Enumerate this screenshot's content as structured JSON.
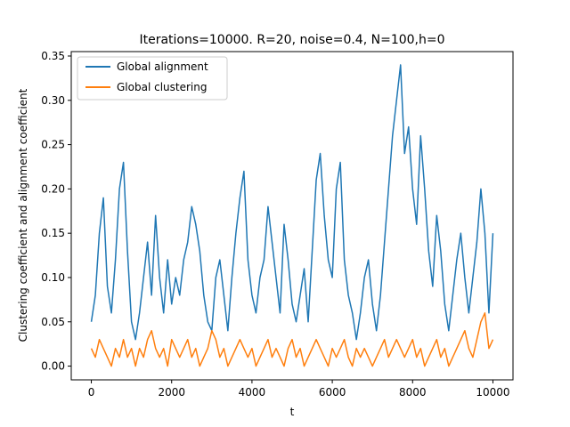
{
  "chart_data": {
    "type": "line",
    "title": "Iterations=10000. R=20, noise=0.4, N=100,h=0",
    "xlabel": "t",
    "ylabel": "Clustering coefficient and alignment coefficient",
    "xlim": [
      -500,
      10500
    ],
    "ylim": [
      -0.0155,
      0.355
    ],
    "xticks": [
      0,
      2000,
      4000,
      6000,
      8000,
      10000
    ],
    "xtick_labels": [
      "0",
      "2000",
      "4000",
      "6000",
      "8000",
      "10000"
    ],
    "yticks": [
      0.0,
      0.05,
      0.1,
      0.15,
      0.2,
      0.25,
      0.3,
      0.35
    ],
    "ytick_labels": [
      "0.00",
      "0.05",
      "0.10",
      "0.15",
      "0.20",
      "0.25",
      "0.30",
      "0.35"
    ],
    "grid": false,
    "legend_position": "top-left",
    "series": [
      {
        "name": "Global alignment",
        "color": "#1f77b4",
        "x": [
          0,
          100,
          200,
          300,
          400,
          500,
          600,
          700,
          800,
          900,
          1000,
          1100,
          1200,
          1300,
          1400,
          1500,
          1600,
          1700,
          1800,
          1900,
          2000,
          2100,
          2200,
          2300,
          2400,
          2500,
          2600,
          2700,
          2800,
          2900,
          3000,
          3100,
          3200,
          3300,
          3400,
          3500,
          3600,
          3700,
          3800,
          3900,
          4000,
          4100,
          4200,
          4300,
          4400,
          4500,
          4600,
          4700,
          4800,
          4900,
          5000,
          5100,
          5200,
          5300,
          5400,
          5500,
          5600,
          5700,
          5800,
          5900,
          6000,
          6100,
          6200,
          6300,
          6400,
          6500,
          6600,
          6700,
          6800,
          6900,
          7000,
          7100,
          7200,
          7300,
          7400,
          7500,
          7600,
          7700,
          7800,
          7900,
          8000,
          8100,
          8200,
          8300,
          8400,
          8500,
          8600,
          8700,
          8800,
          8900,
          9000,
          9100,
          9200,
          9300,
          9400,
          9500,
          9600,
          9700,
          9800,
          9900,
          10000
        ],
        "values": [
          0.05,
          0.08,
          0.15,
          0.19,
          0.09,
          0.06,
          0.12,
          0.2,
          0.23,
          0.13,
          0.05,
          0.03,
          0.06,
          0.1,
          0.14,
          0.08,
          0.17,
          0.1,
          0.06,
          0.12,
          0.07,
          0.1,
          0.08,
          0.12,
          0.14,
          0.18,
          0.16,
          0.13,
          0.08,
          0.05,
          0.04,
          0.1,
          0.12,
          0.08,
          0.04,
          0.1,
          0.15,
          0.19,
          0.22,
          0.12,
          0.08,
          0.06,
          0.1,
          0.12,
          0.18,
          0.14,
          0.1,
          0.06,
          0.16,
          0.12,
          0.07,
          0.05,
          0.08,
          0.11,
          0.05,
          0.13,
          0.21,
          0.24,
          0.17,
          0.12,
          0.1,
          0.2,
          0.23,
          0.12,
          0.08,
          0.06,
          0.03,
          0.06,
          0.1,
          0.12,
          0.07,
          0.04,
          0.08,
          0.14,
          0.2,
          0.26,
          0.3,
          0.34,
          0.24,
          0.27,
          0.2,
          0.16,
          0.26,
          0.2,
          0.13,
          0.09,
          0.17,
          0.13,
          0.07,
          0.04,
          0.08,
          0.12,
          0.15,
          0.1,
          0.06,
          0.1,
          0.14,
          0.2,
          0.15,
          0.06,
          0.15
        ]
      },
      {
        "name": "Global clustering",
        "color": "#ff7f0e",
        "x": [
          0,
          100,
          200,
          300,
          400,
          500,
          600,
          700,
          800,
          900,
          1000,
          1100,
          1200,
          1300,
          1400,
          1500,
          1600,
          1700,
          1800,
          1900,
          2000,
          2100,
          2200,
          2300,
          2400,
          2500,
          2600,
          2700,
          2800,
          2900,
          3000,
          3100,
          3200,
          3300,
          3400,
          3500,
          3600,
          3700,
          3800,
          3900,
          4000,
          4100,
          4200,
          4300,
          4400,
          4500,
          4600,
          4700,
          4800,
          4900,
          5000,
          5100,
          5200,
          5300,
          5400,
          5500,
          5600,
          5700,
          5800,
          5900,
          6000,
          6100,
          6200,
          6300,
          6400,
          6500,
          6600,
          6700,
          6800,
          6900,
          7000,
          7100,
          7200,
          7300,
          7400,
          7500,
          7600,
          7700,
          7800,
          7900,
          8000,
          8100,
          8200,
          8300,
          8400,
          8500,
          8600,
          8700,
          8800,
          8900,
          9000,
          9100,
          9200,
          9300,
          9400,
          9500,
          9600,
          9700,
          9800,
          9900,
          10000
        ],
        "values": [
          0.02,
          0.01,
          0.03,
          0.02,
          0.01,
          0.0,
          0.02,
          0.01,
          0.03,
          0.01,
          0.02,
          0.0,
          0.02,
          0.01,
          0.03,
          0.04,
          0.02,
          0.01,
          0.02,
          0.0,
          0.03,
          0.02,
          0.01,
          0.02,
          0.03,
          0.01,
          0.02,
          0.0,
          0.01,
          0.02,
          0.04,
          0.03,
          0.01,
          0.02,
          0.0,
          0.01,
          0.02,
          0.03,
          0.02,
          0.01,
          0.02,
          0.0,
          0.01,
          0.02,
          0.03,
          0.01,
          0.02,
          0.01,
          0.0,
          0.02,
          0.03,
          0.01,
          0.02,
          0.0,
          0.01,
          0.02,
          0.03,
          0.02,
          0.01,
          0.0,
          0.02,
          0.01,
          0.02,
          0.03,
          0.01,
          0.0,
          0.02,
          0.01,
          0.02,
          0.01,
          0.0,
          0.01,
          0.02,
          0.03,
          0.01,
          0.02,
          0.03,
          0.02,
          0.01,
          0.02,
          0.03,
          0.01,
          0.02,
          0.0,
          0.01,
          0.02,
          0.03,
          0.01,
          0.02,
          0.0,
          0.01,
          0.02,
          0.03,
          0.04,
          0.02,
          0.01,
          0.03,
          0.05,
          0.06,
          0.02,
          0.03
        ]
      }
    ]
  }
}
